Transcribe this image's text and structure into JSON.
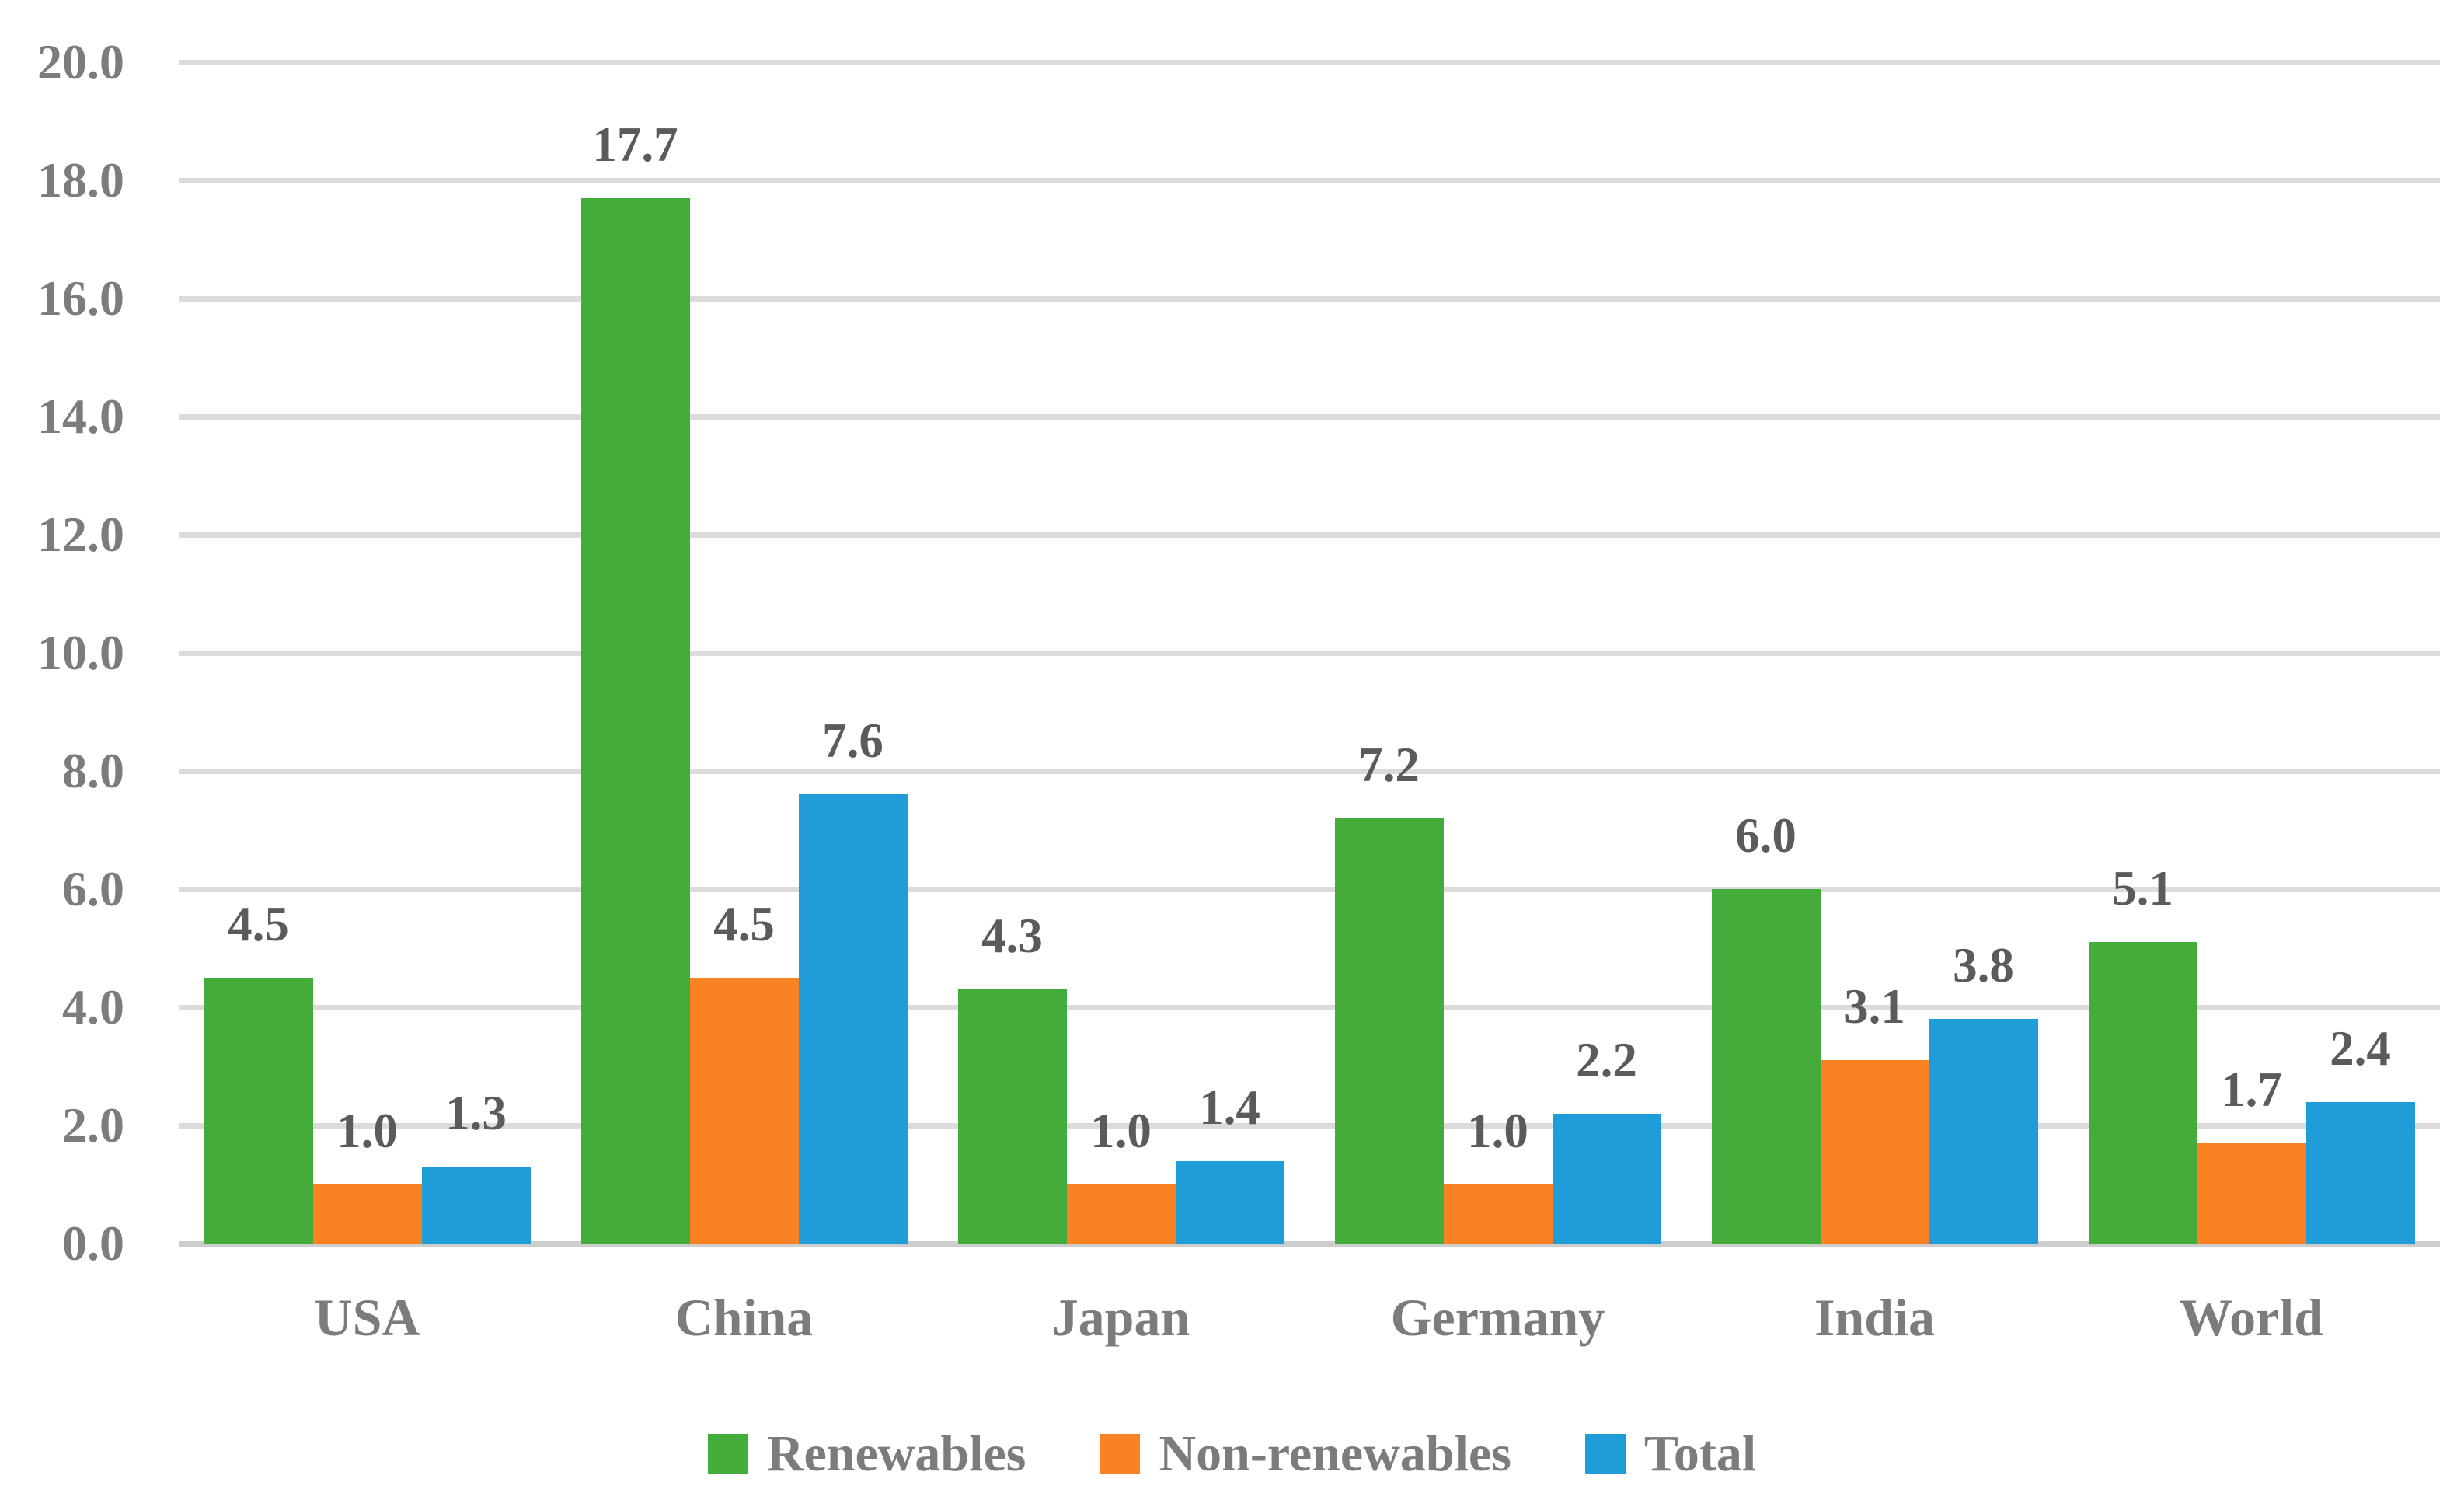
{
  "chart_data": {
    "type": "bar",
    "title": "",
    "xlabel": "",
    "ylabel": "",
    "categories": [
      "USA",
      "China",
      "Japan",
      "Germany",
      "India",
      "World"
    ],
    "series": [
      {
        "name": "Renewables",
        "color": "#43AC3B",
        "values": [
          4.5,
          17.7,
          4.3,
          7.2,
          6.0,
          5.1
        ]
      },
      {
        "name": "Non-renewables",
        "color": "#FB8223",
        "values": [
          1.0,
          4.5,
          1.0,
          1.0,
          3.1,
          1.7
        ]
      },
      {
        "name": "Total",
        "color": "#1F9DD8",
        "values": [
          1.3,
          7.6,
          1.4,
          2.2,
          3.8,
          2.4
        ]
      }
    ],
    "ylim": [
      0,
      20
    ],
    "ytick_step": 2,
    "ytick_labels": [
      "0.0",
      "2.0",
      "4.0",
      "6.0",
      "8.0",
      "10.0",
      "12.0",
      "14.0",
      "16.0",
      "18.0",
      "20.0"
    ],
    "value_label_decimals": 1,
    "grid": true,
    "legend_position": "bottom"
  },
  "palette": {
    "background": "#FFFFFF",
    "gridline": "#DBDBDB",
    "baseline": "#CDCDCD",
    "tick_text": "#7C7C7C",
    "category_text": "#7C7C7C",
    "legend_text": "#7C7C7C",
    "value_label_text": "#5B5B5B"
  }
}
